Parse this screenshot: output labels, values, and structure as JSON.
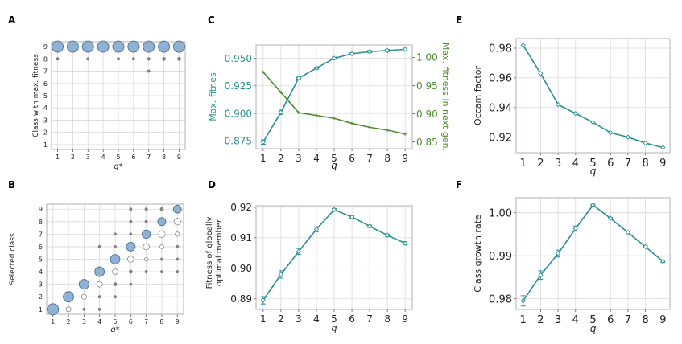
{
  "panels": {
    "a": "A",
    "b": "B",
    "c": "C",
    "d": "D",
    "e": "E",
    "f": "F"
  },
  "colors": {
    "teal": "#2a8f8f",
    "green": "#4f8a2f",
    "bubble": "#8fb1d2",
    "bubble_edge": "#4d6f96",
    "grid": "#d9d9d9"
  },
  "chart_data": [
    {
      "id": "A",
      "type": "scatter",
      "xlabel": "q*",
      "ylabel": "Class with max. fitness",
      "xticks": [
        1,
        2,
        3,
        4,
        5,
        6,
        7,
        8,
        9
      ],
      "yticks": [
        1,
        2,
        3,
        4,
        5,
        6,
        7,
        8,
        9
      ],
      "xlim": [
        0.6,
        9.4
      ],
      "ylim": [
        0.6,
        9.4
      ],
      "points": [
        {
          "x": 1,
          "y": 9,
          "size": 1.0
        },
        {
          "x": 2,
          "y": 9,
          "size": 1.0
        },
        {
          "x": 3,
          "y": 9,
          "size": 1.0
        },
        {
          "x": 4,
          "y": 9,
          "size": 1.0
        },
        {
          "x": 5,
          "y": 9,
          "size": 1.0
        },
        {
          "x": 6,
          "y": 9,
          "size": 1.0
        },
        {
          "x": 7,
          "y": 9,
          "size": 1.0
        },
        {
          "x": 8,
          "y": 9,
          "size": 1.0
        },
        {
          "x": 9,
          "y": 9,
          "size": 1.0
        },
        {
          "x": 1,
          "y": 8,
          "size": 0.05
        },
        {
          "x": 3,
          "y": 8,
          "size": 0.05
        },
        {
          "x": 5,
          "y": 8,
          "size": 0.05
        },
        {
          "x": 6,
          "y": 8,
          "size": 0.05
        },
        {
          "x": 7,
          "y": 8,
          "size": 0.05
        },
        {
          "x": 8,
          "y": 8,
          "size": 0.08
        },
        {
          "x": 9,
          "y": 8,
          "size": 0.08
        },
        {
          "x": 7,
          "y": 7,
          "size": 0.05
        }
      ]
    },
    {
      "id": "B",
      "type": "scatter",
      "xlabel": "q*",
      "ylabel": "Selected class",
      "xticks": [
        1,
        2,
        3,
        4,
        5,
        6,
        7,
        8,
        9
      ],
      "yticks": [
        1,
        2,
        3,
        4,
        5,
        6,
        7,
        8,
        9
      ],
      "xlim": [
        0.6,
        9.4
      ],
      "ylim": [
        0.6,
        9.4
      ],
      "points": [
        {
          "x": 1,
          "y": 1,
          "size": 1.0
        },
        {
          "x": 2,
          "y": 2,
          "size": 0.85
        },
        {
          "x": 3,
          "y": 3,
          "size": 0.75
        },
        {
          "x": 4,
          "y": 4,
          "size": 0.72
        },
        {
          "x": 5,
          "y": 5,
          "size": 0.7
        },
        {
          "x": 6,
          "y": 6,
          "size": 0.62
        },
        {
          "x": 7,
          "y": 7,
          "size": 0.55
        },
        {
          "x": 8,
          "y": 8,
          "size": 0.5
        },
        {
          "x": 9,
          "y": 9,
          "size": 0.5
        },
        {
          "x": 2,
          "y": 1,
          "size": 0.2
        },
        {
          "x": 3,
          "y": 2,
          "size": 0.2
        },
        {
          "x": 4,
          "y": 3,
          "size": 0.25
        },
        {
          "x": 5,
          "y": 4,
          "size": 0.25
        },
        {
          "x": 6,
          "y": 5,
          "size": 0.3
        },
        {
          "x": 7,
          "y": 6,
          "size": 0.3
        },
        {
          "x": 8,
          "y": 7,
          "size": 0.35
        },
        {
          "x": 9,
          "y": 8,
          "size": 0.35
        },
        {
          "x": 3,
          "y": 1,
          "size": 0.05
        },
        {
          "x": 4,
          "y": 1,
          "size": 0.05
        },
        {
          "x": 4,
          "y": 2,
          "size": 0.05
        },
        {
          "x": 5,
          "y": 3,
          "size": 0.08
        },
        {
          "x": 6,
          "y": 4,
          "size": 0.08
        },
        {
          "x": 7,
          "y": 5,
          "size": 0.1
        },
        {
          "x": 8,
          "y": 6,
          "size": 0.12
        },
        {
          "x": 9,
          "y": 7,
          "size": 0.15
        },
        {
          "x": 4,
          "y": 6,
          "size": 0.05
        },
        {
          "x": 5,
          "y": 6,
          "size": 0.05
        },
        {
          "x": 5,
          "y": 7,
          "size": 0.05
        },
        {
          "x": 6,
          "y": 7,
          "size": 0.05
        },
        {
          "x": 6,
          "y": 8,
          "size": 0.05
        },
        {
          "x": 7,
          "y": 8,
          "size": 0.05
        },
        {
          "x": 6,
          "y": 9,
          "size": 0.05
        },
        {
          "x": 7,
          "y": 9,
          "size": 0.05
        },
        {
          "x": 8,
          "y": 9,
          "size": 0.08
        },
        {
          "x": 5,
          "y": 2,
          "size": 0.05
        },
        {
          "x": 6,
          "y": 3,
          "size": 0.05
        },
        {
          "x": 7,
          "y": 4,
          "size": 0.05
        },
        {
          "x": 8,
          "y": 5,
          "size": 0.05
        },
        {
          "x": 9,
          "y": 6,
          "size": 0.05
        },
        {
          "x": 9,
          "y": 5,
          "size": 0.05
        },
        {
          "x": 8,
          "y": 4,
          "size": 0.05
        },
        {
          "x": 9,
          "y": 4,
          "size": 0.05
        }
      ]
    },
    {
      "id": "C",
      "type": "line",
      "xlabel": "q",
      "x": [
        1,
        2,
        3,
        4,
        5,
        6,
        7,
        8,
        9
      ],
      "xlim": [
        0.6,
        9.4
      ],
      "series": [
        {
          "name": "Max. fitnes",
          "axis": "left",
          "color": "#2a8f8f",
          "values": [
            0.874,
            0.901,
            0.932,
            0.941,
            0.95,
            0.954,
            0.956,
            0.957,
            0.958
          ],
          "errors": [
            0.002,
            0.002,
            0.001,
            0.001,
            0.001,
            0.001,
            0.001,
            0.001,
            0.001
          ]
        },
        {
          "name": "Max. fitness in next gen.",
          "axis": "right",
          "color": "#4f8a2f",
          "values": [
            0.974,
            0.938,
            0.902,
            0.897,
            0.892,
            0.883,
            0.876,
            0.871,
            0.864
          ],
          "errors": [
            0,
            0,
            0,
            0,
            0,
            0,
            0,
            0,
            0
          ]
        }
      ],
      "ylabel": "Max. fitnes",
      "ylim": [
        0.868,
        0.962
      ],
      "yticks": [
        0.875,
        0.9,
        0.925,
        0.95
      ],
      "ytick_labels": [
        "0.875",
        "0.900",
        "0.925",
        "0.950"
      ],
      "ylabel_right": "Max. fitness in next gen.",
      "ylim_right": [
        0.838,
        1.022
      ],
      "yticks_right": [
        0.85,
        0.9,
        0.95,
        1.0
      ],
      "ytick_labels_right": [
        "0.85",
        "0.90",
        "0.95",
        "1.00"
      ]
    },
    {
      "id": "D",
      "type": "line",
      "xlabel": "q",
      "ylabel": "Fitness of globally optimal member",
      "ylabel_lines": [
        "Fitness of globally",
        "optimal member"
      ],
      "x": [
        1,
        2,
        3,
        4,
        5,
        6,
        7,
        8,
        9
      ],
      "xlim": [
        0.6,
        9.4
      ],
      "ylim": [
        0.8865,
        0.9205
      ],
      "yticks": [
        0.89,
        0.9,
        0.91,
        0.92
      ],
      "ytick_labels": [
        "0.89",
        "0.90",
        "0.91",
        "0.92"
      ],
      "series": [
        {
          "name": "Fitness of globally optimal member",
          "color": "#2a8f8f",
          "values": [
            0.8895,
            0.898,
            0.9055,
            0.9128,
            0.9192,
            0.9168,
            0.9138,
            0.9108,
            0.9082
          ],
          "errors": [
            0.0012,
            0.0012,
            0.001,
            0.0008,
            0.0004,
            0.0004,
            0.0004,
            0.0004,
            0.0005
          ]
        }
      ]
    },
    {
      "id": "E",
      "type": "line",
      "xlabel": "q",
      "ylabel": "Occam factor",
      "x": [
        1,
        2,
        3,
        4,
        5,
        6,
        7,
        8,
        9
      ],
      "xlim": [
        0.6,
        9.4
      ],
      "ylim": [
        0.9095,
        0.9865
      ],
      "yticks": [
        0.92,
        0.94,
        0.96,
        0.98
      ],
      "ytick_labels": [
        "0.92",
        "0.94",
        "0.96",
        "0.98"
      ],
      "series": [
        {
          "name": "Occam factor",
          "color": "#2a8f8f",
          "values": [
            0.982,
            0.963,
            0.942,
            0.936,
            0.93,
            0.923,
            0.92,
            0.916,
            0.913
          ],
          "errors": [
            0,
            0,
            0,
            0,
            0,
            0,
            0,
            0,
            0
          ]
        }
      ]
    },
    {
      "id": "F",
      "type": "line",
      "xlabel": "q",
      "ylabel": "Class growth rate",
      "x": [
        1,
        2,
        3,
        4,
        5,
        6,
        7,
        8,
        9
      ],
      "xlim": [
        0.6,
        9.4
      ],
      "ylim": [
        0.9775,
        1.0035
      ],
      "yticks": [
        0.98,
        0.99,
        1.0
      ],
      "ytick_labels": [
        "0.98",
        "0.99",
        "1.00"
      ],
      "series": [
        {
          "name": "Class growth rate",
          "color": "#2a8f8f",
          "values": [
            0.9795,
            0.9855,
            0.9905,
            0.9963,
            1.0018,
            0.9987,
            0.9954,
            0.9921,
            0.9887
          ],
          "errors": [
            0.0012,
            0.001,
            0.0008,
            0.0006,
            0.0002,
            0.0002,
            0.0002,
            0.0002,
            0.0003
          ]
        }
      ]
    }
  ]
}
